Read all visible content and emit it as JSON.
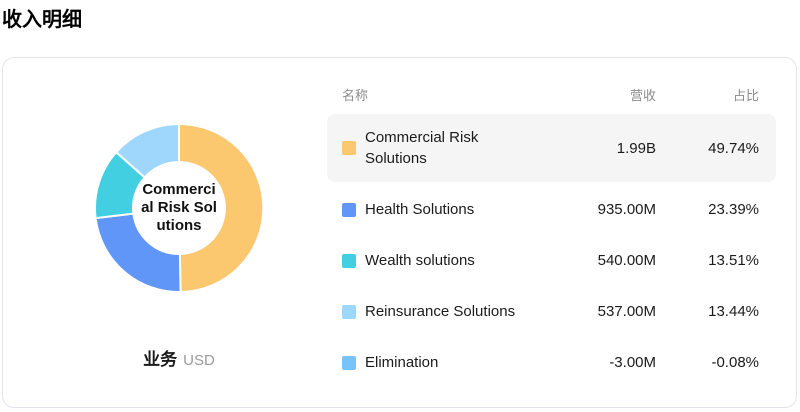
{
  "page": {
    "title": "收入明细"
  },
  "chart": {
    "center_label": "Commercial Risk Solutions",
    "center_label_lines": [
      "Commerci",
      "al Risk Sol",
      "utions"
    ],
    "axis_name": "业务",
    "unit": "USD"
  },
  "table": {
    "headers": {
      "name": "名称",
      "revenue": "营收",
      "share": "占比"
    },
    "rows": [
      {
        "name": "Commercial Risk Solutions",
        "revenue": "1.99B",
        "share": "49.74%",
        "color": "#FBC76F",
        "highlighted": true
      },
      {
        "name": "Health Solutions",
        "revenue": "935.00M",
        "share": "23.39%",
        "color": "#6096F7",
        "highlighted": false
      },
      {
        "name": "Wealth solutions",
        "revenue": "540.00M",
        "share": "13.51%",
        "color": "#42CFE2",
        "highlighted": false
      },
      {
        "name": "Reinsurance Solutions",
        "revenue": "537.00M",
        "share": "13.44%",
        "color": "#9ED7FB",
        "highlighted": false
      },
      {
        "name": "Elimination",
        "revenue": "-3.00M",
        "share": "-0.08%",
        "color": "#79C3F8",
        "highlighted": false
      }
    ]
  },
  "chart_data": {
    "type": "pie",
    "title": "收入明细",
    "dimension": "业务",
    "unit": "USD",
    "series": [
      {
        "name": "Commercial Risk Solutions",
        "value_label": "1.99B",
        "value_musd": 1990,
        "percent": 49.74,
        "color": "#FBC76F"
      },
      {
        "name": "Health Solutions",
        "value_label": "935.00M",
        "value_musd": 935,
        "percent": 23.39,
        "color": "#6096F7"
      },
      {
        "name": "Wealth solutions",
        "value_label": "540.00M",
        "value_musd": 540,
        "percent": 13.51,
        "color": "#42CFE2"
      },
      {
        "name": "Reinsurance Solutions",
        "value_label": "537.00M",
        "value_musd": 537,
        "percent": 13.44,
        "color": "#9ED7FB"
      },
      {
        "name": "Elimination",
        "value_label": "-3.00M",
        "value_musd": -3,
        "percent": -0.08,
        "color": "#79C3F8"
      }
    ],
    "inner_radius_ratio": 0.55,
    "start_angle_deg": 0,
    "direction": "clockwise",
    "segment_border": {
      "color": "#ffffff",
      "width": 2
    },
    "selected": "Commercial Risk Solutions"
  }
}
